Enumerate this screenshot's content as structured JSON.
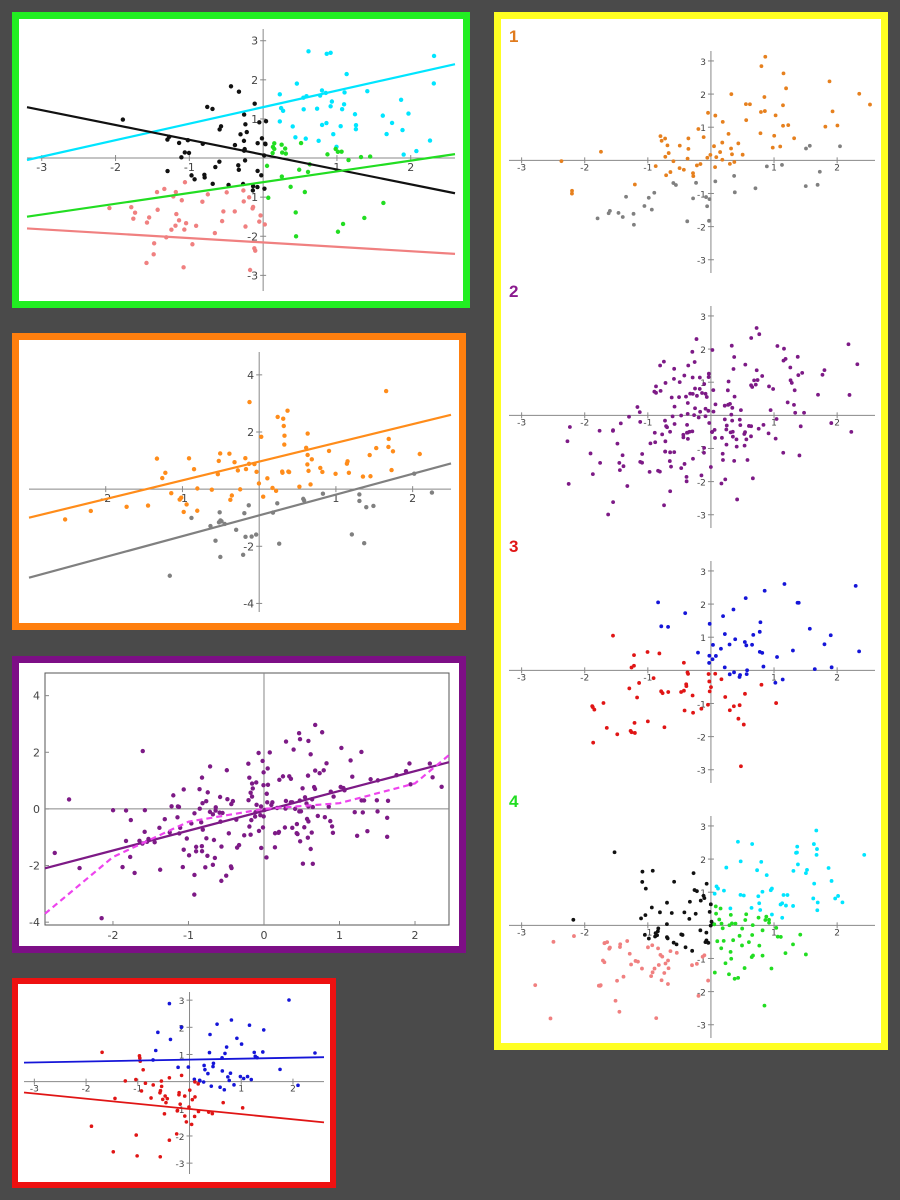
{
  "frames": {
    "green": "#22ee22",
    "orange": "#ff7f0e",
    "purple": "#7d0f86",
    "red": "#ee1111",
    "yellow": "#ffff22"
  },
  "panel_numbers": [
    {
      "label": "1",
      "color": "#e07b1e"
    },
    {
      "label": "2",
      "color": "#8a1a8e"
    },
    {
      "label": "3",
      "color": "#e01515"
    },
    {
      "label": "4",
      "color": "#22dd22"
    }
  ],
  "chart_data": [
    {
      "id": "green-fit",
      "type": "scatter",
      "title": "",
      "xlim": [
        -3.2,
        2.6
      ],
      "ylim": [
        -3.4,
        3.3
      ],
      "xticks": [
        "-3",
        "-2",
        "-1",
        "1",
        "2"
      ],
      "yticks": [
        "-3",
        "-2",
        "-1",
        "1",
        "2",
        "3"
      ],
      "series": [
        {
          "color": "#00e5ff",
          "cluster": "upper-right",
          "n": 45
        },
        {
          "color": "#111111",
          "cluster": "upper-left",
          "n": 50
        },
        {
          "color": "#f08080",
          "cluster": "lower-left",
          "n": 45
        },
        {
          "color": "#22dd22",
          "cluster": "lower-right",
          "n": 30
        }
      ],
      "lines": [
        {
          "color": "#00e5ff",
          "x": [
            -3.2,
            2.6
          ],
          "y": [
            -0.05,
            2.4
          ]
        },
        {
          "color": "#111111",
          "x": [
            -3.2,
            2.6
          ],
          "y": [
            1.3,
            -0.9
          ]
        },
        {
          "color": "#22dd22",
          "x": [
            -3.2,
            2.6
          ],
          "y": [
            -1.5,
            0.1
          ]
        },
        {
          "color": "#f08080",
          "x": [
            -3.2,
            2.6
          ],
          "y": [
            -1.8,
            -2.45
          ]
        }
      ]
    },
    {
      "id": "orange-fit",
      "type": "scatter",
      "title": "",
      "xlim": [
        -3.0,
        2.5
      ],
      "ylim": [
        -4.3,
        4.8
      ],
      "xticks": [
        "-2",
        "-1",
        "1",
        "2"
      ],
      "yticks": [
        "-4",
        "-2",
        "2",
        "4"
      ],
      "series": [
        {
          "color": "#ff8c1a",
          "cluster": "upper",
          "n": 100
        },
        {
          "color": "#808080",
          "cluster": "lower",
          "n": 100
        }
      ],
      "lines": [
        {
          "color": "#ff8c1a",
          "x": [
            -3.0,
            2.5
          ],
          "y": [
            -1.0,
            2.6
          ]
        },
        {
          "color": "#808080",
          "x": [
            -3.0,
            2.5
          ],
          "y": [
            -3.1,
            0.9
          ]
        }
      ]
    },
    {
      "id": "purple-fit",
      "type": "scatter",
      "title": "",
      "xlim": [
        -2.9,
        2.45
      ],
      "ylim": [
        -4.1,
        4.8
      ],
      "xticks": [
        "-2",
        "-1",
        "0",
        "1",
        "2"
      ],
      "yticks": [
        "-4",
        "-2",
        "0",
        "2",
        "4"
      ],
      "series": [
        {
          "color": "#7d1a86",
          "cluster": "all",
          "n": 200
        }
      ],
      "lines": [
        {
          "color": "#7d1a86",
          "style": "solid",
          "x": [
            -2.9,
            2.45
          ],
          "y": [
            -2.1,
            1.65
          ]
        },
        {
          "color": "#ee44ee",
          "style": "dashed",
          "curve": "cubic",
          "x": [
            -2.9,
            -2.0,
            -1.0,
            0.0,
            1.0,
            2.0,
            2.45
          ],
          "y": [
            -3.7,
            -1.7,
            -0.45,
            0.0,
            0.2,
            0.9,
            1.9
          ]
        }
      ]
    },
    {
      "id": "red-fit",
      "type": "scatter",
      "title": "",
      "xlim": [
        -3.2,
        2.6
      ],
      "ylim": [
        -3.4,
        3.3
      ],
      "xticks": [
        "-3",
        "-2",
        "-1",
        "1",
        "2"
      ],
      "yticks": [
        "-3",
        "-2",
        "-1",
        "1",
        "2",
        "3"
      ],
      "series": [
        {
          "color": "#1515d8",
          "cluster": "upper-right",
          "n": 100
        },
        {
          "color": "#e01515",
          "cluster": "lower-left",
          "n": 100
        }
      ],
      "lines": [
        {
          "color": "#1515d8",
          "x": [
            -3.2,
            2.6
          ],
          "y": [
            0.7,
            0.9
          ]
        },
        {
          "color": "#e01515",
          "x": [
            -3.2,
            2.6
          ],
          "y": [
            -0.4,
            -1.5
          ]
        }
      ]
    },
    {
      "id": "yellow-1",
      "type": "scatter",
      "xlim": [
        -3.2,
        2.6
      ],
      "ylim": [
        -3.4,
        3.3
      ],
      "xticks": [
        "-3",
        "-2",
        "-1",
        "1",
        "2"
      ],
      "yticks": [
        "-3",
        "-2",
        "-1",
        "1",
        "2",
        "3"
      ],
      "series": [
        {
          "color": "#e6801e",
          "cluster": "upper",
          "n": 100
        },
        {
          "color": "#808080",
          "cluster": "lower",
          "n": 100
        }
      ]
    },
    {
      "id": "yellow-2",
      "type": "scatter",
      "xlim": [
        -3.2,
        2.6
      ],
      "ylim": [
        -3.4,
        3.3
      ],
      "xticks": [
        "-3",
        "-2",
        "-1",
        "1",
        "2"
      ],
      "yticks": [
        "-3",
        "-2",
        "-1",
        "1",
        "2",
        "3"
      ],
      "series": [
        {
          "color": "#7d1a86",
          "cluster": "all",
          "n": 200
        }
      ]
    },
    {
      "id": "yellow-3",
      "type": "scatter",
      "xlim": [
        -3.2,
        2.6
      ],
      "ylim": [
        -3.4,
        3.3
      ],
      "xticks": [
        "-3",
        "-2",
        "-1",
        "1",
        "2"
      ],
      "yticks": [
        "-3",
        "-2",
        "-1",
        "1",
        "2",
        "3"
      ],
      "series": [
        {
          "color": "#1515d8",
          "cluster": "upper-right",
          "n": 100
        },
        {
          "color": "#e01515",
          "cluster": "lower-left",
          "n": 100
        }
      ]
    },
    {
      "id": "yellow-4",
      "type": "scatter",
      "xlim": [
        -3.2,
        2.6
      ],
      "ylim": [
        -3.4,
        3.3
      ],
      "xticks": [
        "-3",
        "-2",
        "-1",
        "1",
        "2"
      ],
      "yticks": [
        "-3",
        "-2",
        "-1",
        "1",
        "2",
        "3"
      ],
      "series": [
        {
          "color": "#00e5ff",
          "cluster": "upper-right",
          "n": 50
        },
        {
          "color": "#111111",
          "cluster": "upper-left",
          "n": 50
        },
        {
          "color": "#f08080",
          "cluster": "lower-left",
          "n": 50
        },
        {
          "color": "#22dd22",
          "cluster": "lower-right",
          "n": 50
        }
      ]
    }
  ]
}
